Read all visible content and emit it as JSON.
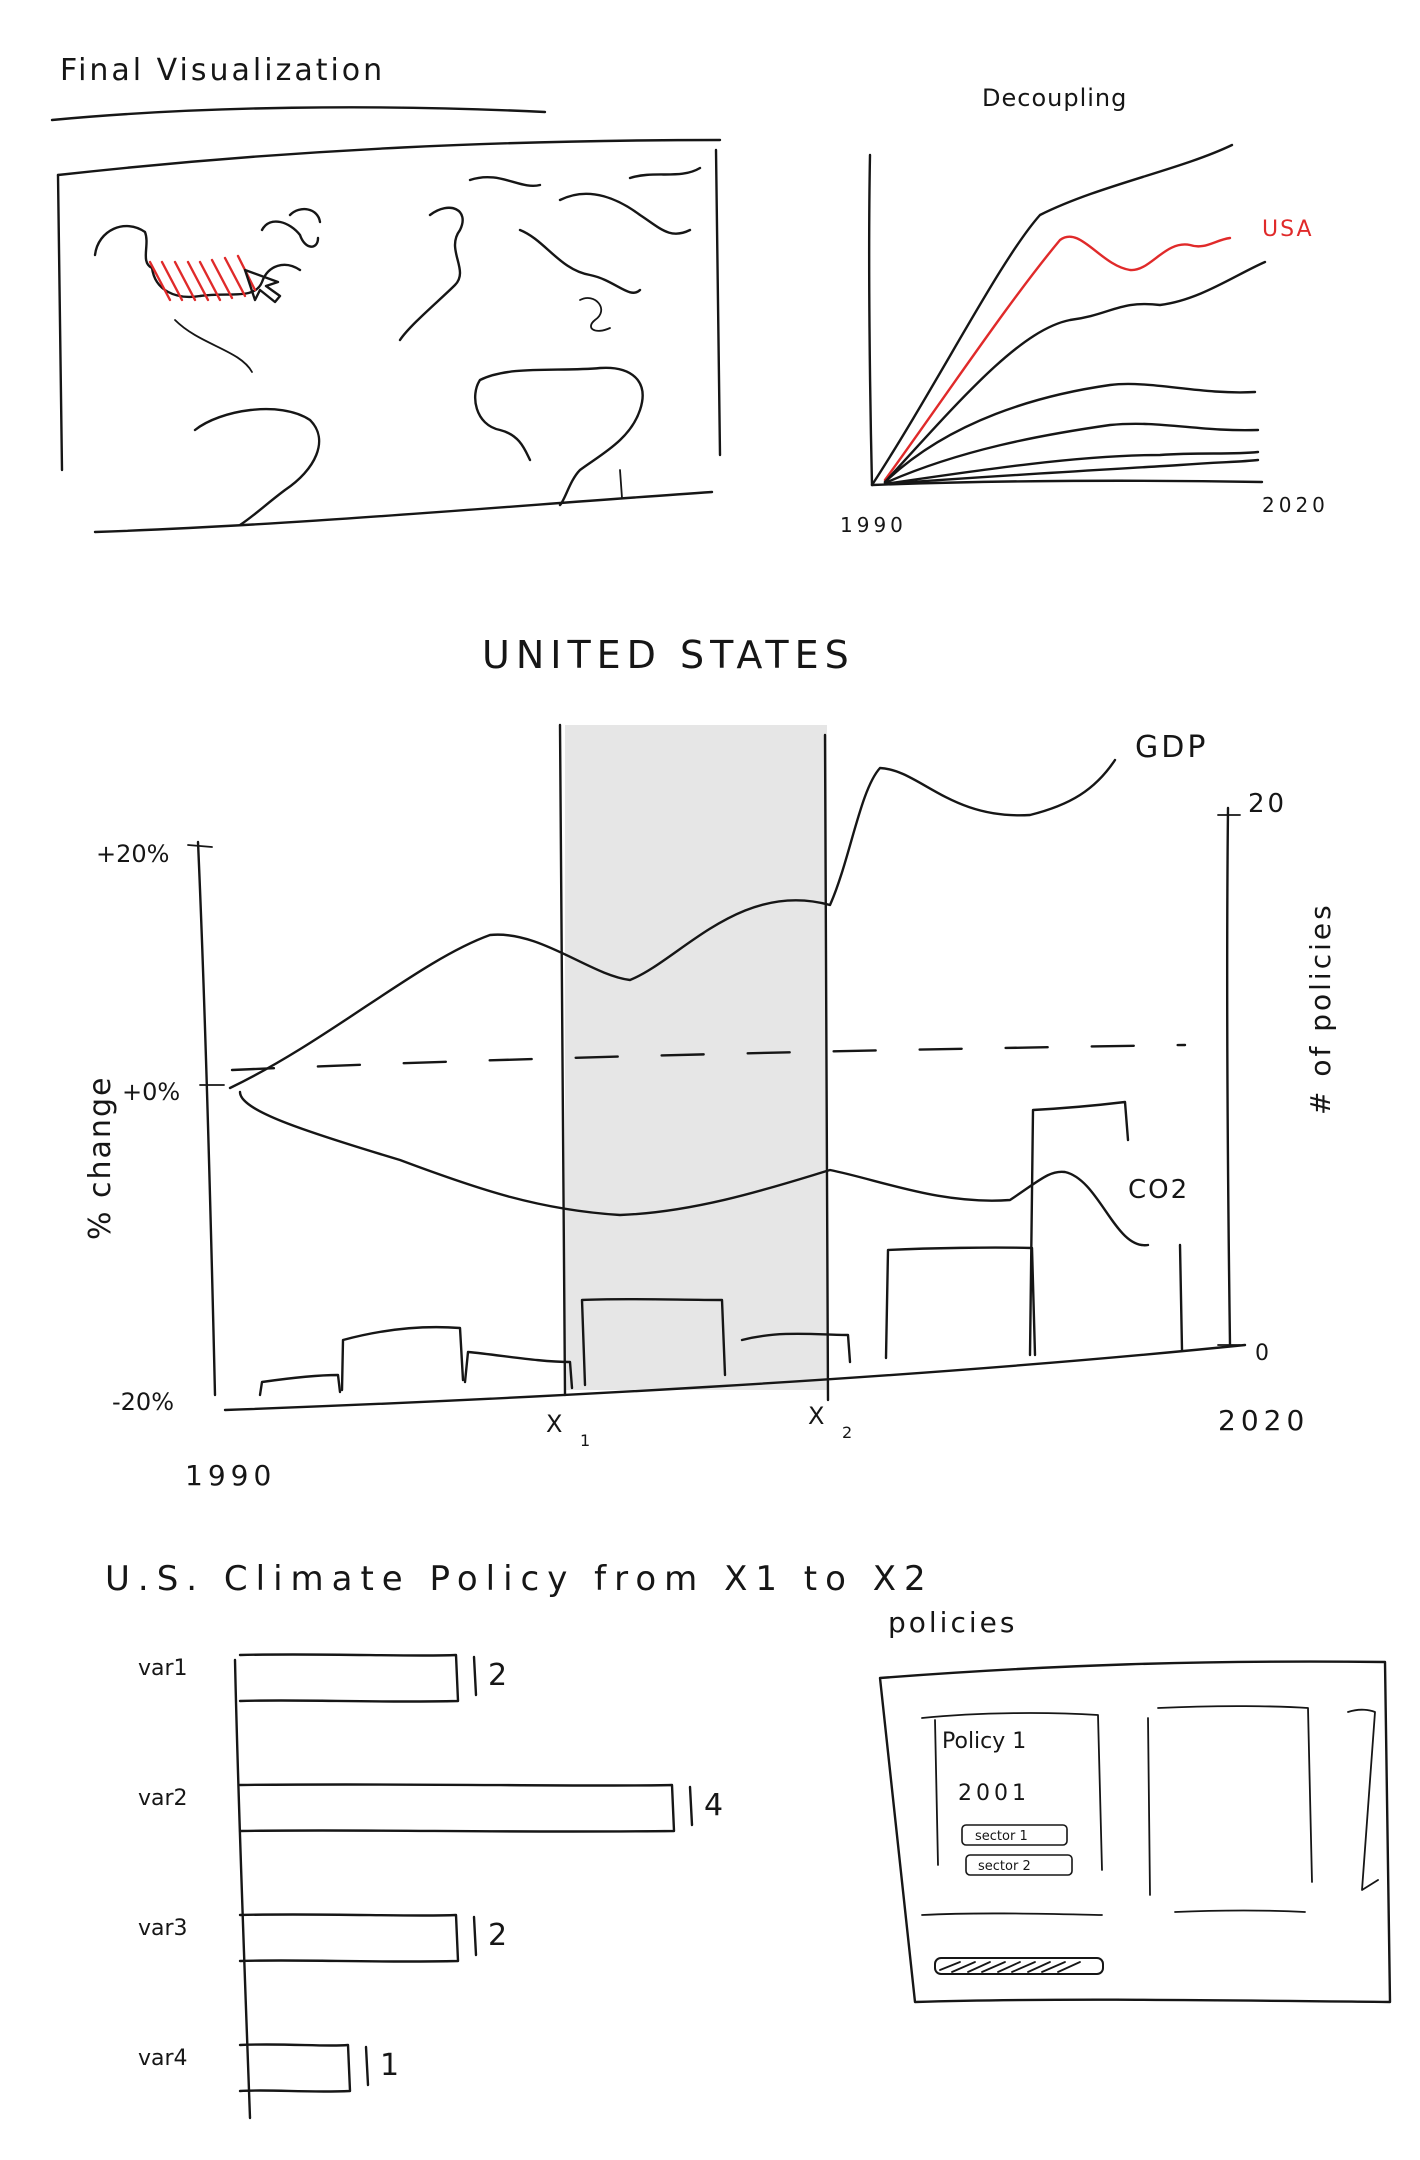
{
  "title": "Final Visualization",
  "decoupling": {
    "title": "Decoupling",
    "highlight_label": "USA",
    "x_start": "1990",
    "x_end": "2020"
  },
  "main_chart": {
    "title": "UNITED STATES",
    "y_left_label": "% change",
    "y_left_top": "+20%",
    "y_left_mid": "+0%",
    "y_left_bottom": "-20%",
    "y_right_label": "# of policies",
    "y_right_top": "20",
    "y_right_bottom": "0",
    "x_start": "1990",
    "x_end": "2020",
    "marker_1": "X",
    "marker_1_sub": "1",
    "marker_2": "X",
    "marker_2_sub": "2",
    "series_gdp": "GDP",
    "series_co2": "CO2"
  },
  "bar_section": {
    "title": "U.S. Climate Policy from X1 to X2"
  },
  "chart_data": {
    "type": "bar",
    "orientation": "horizontal",
    "categories": [
      "var1",
      "var2",
      "var3",
      "var4"
    ],
    "values": [
      2,
      4,
      2,
      1
    ],
    "title": "U.S. Climate Policy from X1 to X2"
  },
  "policies": {
    "title": "policies",
    "card1": {
      "name": "Policy 1",
      "year": "2001",
      "tags": [
        "sector 1",
        "sector 2"
      ]
    }
  },
  "colors": {
    "ink": "#161616",
    "accent": "#e02a2a",
    "shade": "#e6e6e6"
  }
}
